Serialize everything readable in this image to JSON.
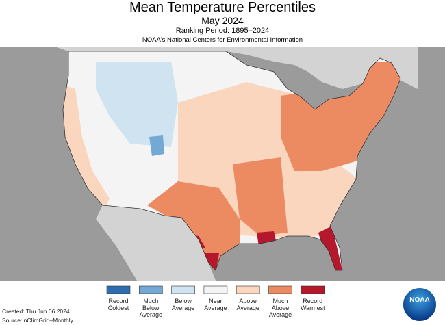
{
  "header": {
    "title": "Mean Temperature Percentiles",
    "subtitle": "May 2024",
    "ranking_period": "Ranking Period: 1895–2024",
    "source_org": "NOAA's National Centers for Environmental Information"
  },
  "legend": {
    "items": [
      {
        "label": "Record Coldest",
        "color": "#2d6db0"
      },
      {
        "label": "Much Below Average",
        "color": "#74a9d6"
      },
      {
        "label": "Below Average",
        "color": "#cfe3f1"
      },
      {
        "label": "Near Average",
        "color": "#f4f4f4"
      },
      {
        "label": "Above Average",
        "color": "#fbd6bf"
      },
      {
        "label": "Much Above Average",
        "color": "#ec8a62"
      },
      {
        "label": "Record Warmest",
        "color": "#b5182d"
      }
    ]
  },
  "footer": {
    "created": "Created: Thu Jun 06 2024",
    "source": "Source: nClimGrid–Monthly"
  },
  "logo": {
    "text": "NOAA"
  }
}
